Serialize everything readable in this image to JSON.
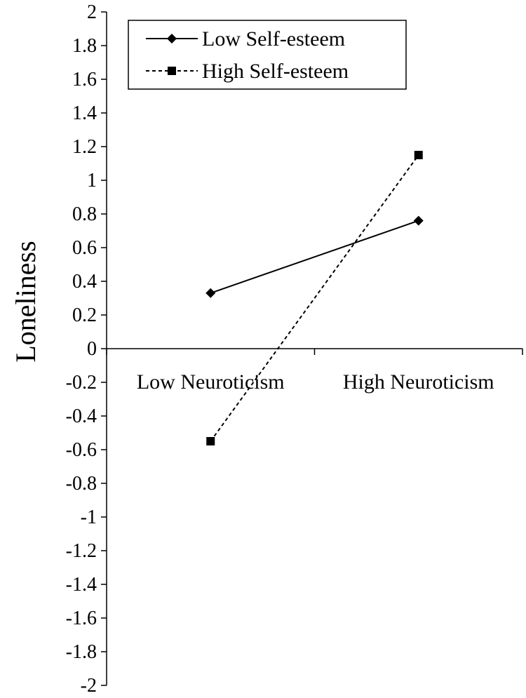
{
  "chart_data": {
    "type": "line",
    "categories": [
      "Low Neuroticism",
      "High Neuroticism"
    ],
    "series": [
      {
        "name": "Low Self-esteem",
        "values": [
          0.33,
          0.76
        ],
        "line_style": "solid",
        "marker": "diamond",
        "color": "#000000"
      },
      {
        "name": "High Self-esteem",
        "values": [
          -0.55,
          1.15
        ],
        "line_style": "dashed",
        "marker": "square",
        "color": "#000000"
      }
    ],
    "ylabel": "Loneliness",
    "xlabel": "",
    "ylim": [
      -2,
      2
    ],
    "yticks": [
      "2",
      "1.8",
      "1.6",
      "1.4",
      "1.2",
      "1",
      "0.8",
      "0.6",
      "0.4",
      "0.2",
      "0",
      "-0.2",
      "-0.4",
      "-0.6",
      "-0.8",
      "-1",
      "-1.2",
      "-1.4",
      "-1.6",
      "-1.8",
      "-2"
    ],
    "grid": false,
    "legend_position": "top-left"
  }
}
